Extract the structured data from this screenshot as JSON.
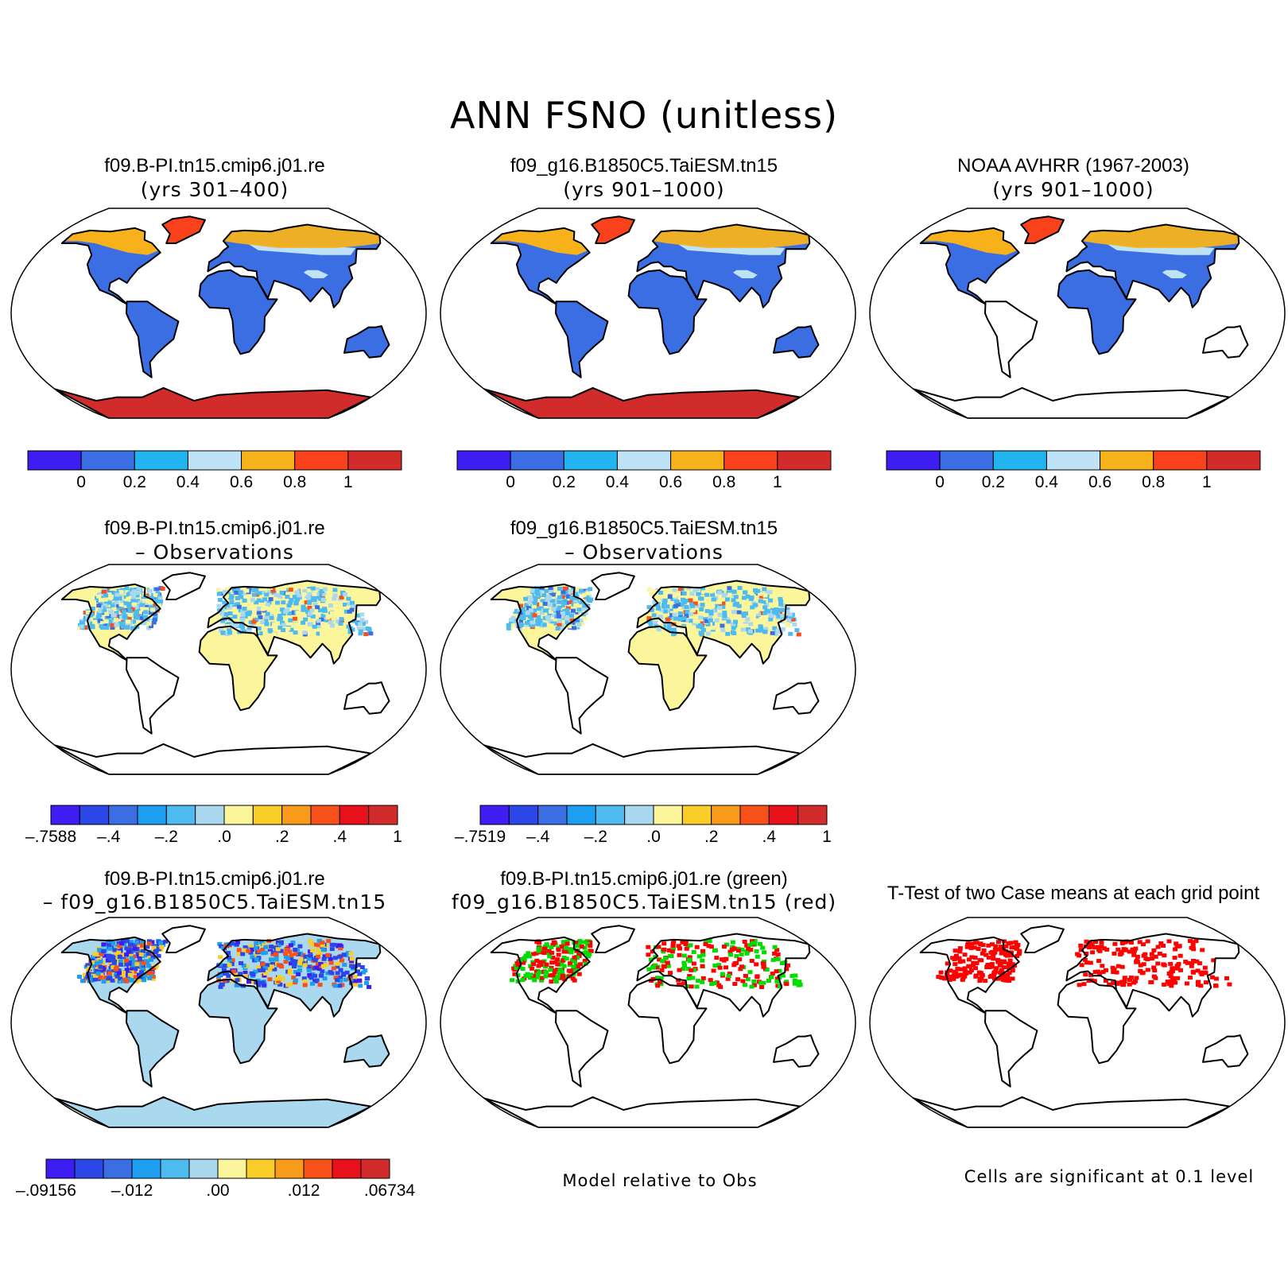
{
  "title": "ANN FSNO (unitless)",
  "colors": {
    "abs_scale": [
      "#3d1df2",
      "#3b6ee3",
      "#22b4ee",
      "#bfe3f6",
      "#f7b21b",
      "#f9411b",
      "#d22b2b"
    ],
    "diff_scale": [
      "#3d1df2",
      "#2b47e8",
      "#3b6ee3",
      "#1c9ff0",
      "#4dbbf0",
      "#aad8ef",
      "#fbf59c",
      "#f8cd28",
      "#f89a1a",
      "#f7501b",
      "#e8101a",
      "#d22b2b"
    ],
    "sig_red": "#ff0000",
    "sig_green": "#00dd00"
  },
  "panels": [
    {
      "id": "case1",
      "title_line1": "f09.B-PI.tn15.cmip6.j01.re",
      "title_line2": "(yrs 301–400)",
      "fill": "abs"
    },
    {
      "id": "case2",
      "title_line1": "f09_g16.B1850C5.TaiESM.tn15",
      "title_line2": "(yrs 901–1000)",
      "fill": "abs"
    },
    {
      "id": "obs",
      "title_line1": "NOAA AVHRR (1967-2003)",
      "title_line2": "(yrs 901–1000)",
      "fill": "obs"
    },
    {
      "id": "case1_obs",
      "title_line1": "f09.B-PI.tn15.cmip6.j01.re",
      "title_line2": "– Observations",
      "fill": "diff"
    },
    {
      "id": "case2_obs",
      "title_line1": "f09_g16.B1850C5.TaiESM.tn15",
      "title_line2": "– Observations",
      "fill": "diff"
    },
    {
      "id": "case_diff",
      "title_line1": "f09.B-PI.tn15.cmip6.j01.re",
      "title_line2": "–  f09_g16.B1850C5.TaiESM.tn15",
      "fill": "casediff"
    },
    {
      "id": "rel_obs",
      "title_line1": "f09.B-PI.tn15.cmip6.j01.re (green)",
      "title_line2": "f09_g16.B1850C5.TaiESM.tn15 (red)",
      "fill": "relobs",
      "note": "Model relative to Obs"
    },
    {
      "id": "ttest",
      "title_line1": "T-Test of two Case means at each grid point",
      "title_line2": "",
      "fill": "ttest",
      "note": "Cells are significant at 0.1 level"
    }
  ],
  "colorbars": [
    {
      "id": "cb_case1",
      "labels": [
        "0",
        "0.2",
        "0.4",
        "0.6",
        "0.8",
        "1"
      ]
    },
    {
      "id": "cb_case2",
      "labels": [
        "0",
        "0.2",
        "0.4",
        "0.6",
        "0.8",
        "1"
      ]
    },
    {
      "id": "cb_obs",
      "labels": [
        "0",
        "0.2",
        "0.4",
        "0.6",
        "0.8",
        "1"
      ]
    },
    {
      "id": "cb_case1_obs",
      "labels": [
        "–.7588",
        "–.4",
        "–.2",
        ".0",
        ".2",
        ".4",
        "1"
      ]
    },
    {
      "id": "cb_case2_obs",
      "labels": [
        "–.7519",
        "–.4",
        "–.2",
        ".0",
        ".2",
        ".4",
        "1"
      ]
    },
    {
      "id": "cb_case_diff",
      "labels": [
        "–.09156",
        "–.012",
        ".00",
        ".012",
        ".06734"
      ]
    }
  ]
}
